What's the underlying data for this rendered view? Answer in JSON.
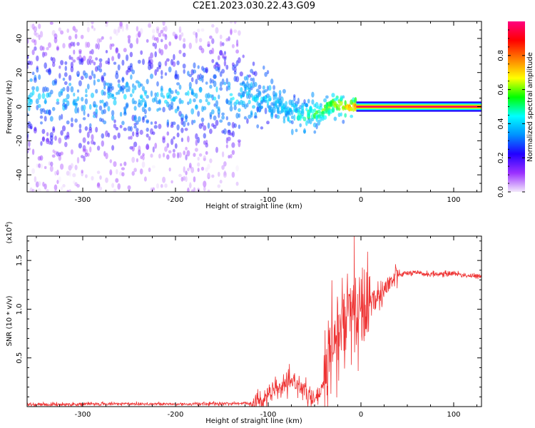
{
  "title": "C2E1.2023.030.22.43.G09",
  "chart_data": [
    {
      "type": "heatmap",
      "xlabel": "Height of straight line (km)",
      "ylabel": "Frequency (Hz)",
      "xlim": [
        -360,
        130
      ],
      "ylim": [
        -50,
        50
      ],
      "xticks": [
        -300,
        -200,
        -100,
        0,
        100
      ],
      "xticklabels": [
        "-300",
        "-200",
        "-100",
        "0",
        "100"
      ],
      "yticks": [
        -40,
        -20,
        0,
        20,
        40
      ],
      "yticklabels": [
        "-40",
        "-20",
        "0",
        "20",
        "40"
      ],
      "colorbar": {
        "label": "Normalized spectral amplitude",
        "range": [
          0,
          1
        ],
        "ticks": [
          0.0,
          0.2,
          0.4,
          0.6,
          0.8
        ],
        "ticklabels": [
          "0.0",
          "0.2",
          "0.4",
          "0.6",
          "0.8"
        ],
        "colors": [
          "#f3e9fb",
          "#9b30ff",
          "#2200ff",
          "#0090ff",
          "#00ffff",
          "#00ff00",
          "#ffff00",
          "#ff8000",
          "#ff0000",
          "#ff0080"
        ]
      },
      "features": {
        "diffuse_noise_x": [
          -360,
          -130
        ],
        "tone_start_x": -5,
        "tone_frequency_hz": 0,
        "tone_amplitude": 1.0,
        "ridge": [
          [
            -360,
            5
          ],
          [
            -300,
            4
          ],
          [
            -250,
            5
          ],
          [
            -200,
            5
          ],
          [
            -150,
            6
          ],
          [
            -100,
            5
          ],
          [
            -80,
            -2
          ],
          [
            -65,
            -6
          ],
          [
            -55,
            -5
          ],
          [
            -45,
            -4
          ],
          [
            -35,
            0
          ],
          [
            -25,
            1
          ],
          [
            -15,
            0
          ],
          [
            -5,
            0
          ]
        ]
      }
    },
    {
      "type": "line",
      "xlabel": "Height of straight line (km)",
      "ylabel": "SNR (10 * v/v)",
      "yscale_label": "(x10",
      "yscale_exp": "4",
      "xlim": [
        -360,
        130
      ],
      "ylim": [
        0,
        17500
      ],
      "xticks": [
        -300,
        -200,
        -100,
        0,
        100
      ],
      "xticklabels": [
        "-300",
        "-200",
        "-100",
        "0",
        "100"
      ],
      "yticks": [
        5000,
        10000,
        15000
      ],
      "yticklabels": [
        "0.5",
        "1.0",
        "1.5"
      ],
      "color": "#ee3333",
      "series": [
        {
          "x": [
            -360,
            -300,
            -250,
            -200,
            -150,
            -120,
            -110,
            -100,
            -90,
            -80,
            -70,
            -60,
            -50,
            -40,
            -35,
            -30,
            -25,
            -20,
            -15,
            -10,
            -5,
            0,
            5,
            10,
            15,
            20,
            30,
            40,
            50,
            60,
            70,
            80,
            90,
            100,
            110,
            120,
            130
          ],
          "y": [
            200,
            250,
            300,
            250,
            300,
            350,
            500,
            1200,
            1800,
            2200,
            2600,
            1500,
            500,
            2000,
            4000,
            6000,
            7000,
            8500,
            9000,
            10000,
            8500,
            9500,
            10000,
            11000,
            11000,
            11500,
            12500,
            13500,
            13700,
            13700,
            13600,
            13600,
            13600,
            13700,
            13500,
            13400,
            13300
          ]
        }
      ]
    }
  ]
}
